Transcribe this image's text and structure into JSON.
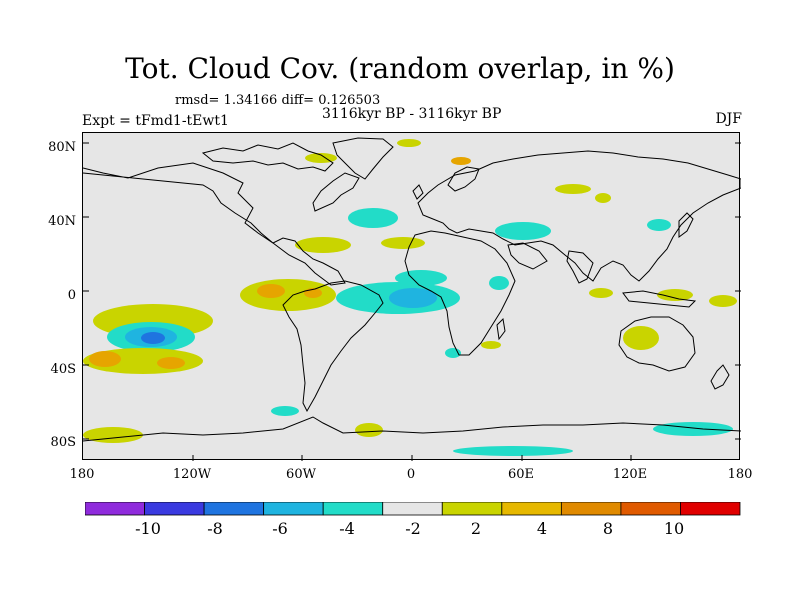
{
  "title": "Tot. Cloud Cov. (random overlap, in %)",
  "stats": "rmsd= 1.34166 diff= 0.126503",
  "experiment": "Expt = tFmd1-tEwt1",
  "period": "3116kyr BP - 3116kyr BP",
  "season": "DJF",
  "y_ticks": [
    "80N",
    "40N",
    "0",
    "40S",
    "80S"
  ],
  "x_ticks": [
    "180",
    "120W",
    "60W",
    "0",
    "60E",
    "120E",
    "180"
  ],
  "colorbar": {
    "colors": [
      "#8f2bdc",
      "#3a3ae0",
      "#1f74e0",
      "#1fb4e0",
      "#22dcc8",
      "#e6e6e6",
      "#c9d400",
      "#e6b800",
      "#e08a00",
      "#e05a00",
      "#e00000"
    ],
    "labels": [
      "-10",
      "-8",
      "-6",
      "-4",
      "-2",
      "2",
      "4",
      "8",
      "10"
    ]
  },
  "palette": {
    "neutral": "#e6e6e6",
    "pos_light": "#c9d400",
    "pos_mid": "#e6a500",
    "neg_light": "#22dcc8",
    "neg_mid": "#1fb4e0",
    "neg_strong": "#1f74e0"
  }
}
